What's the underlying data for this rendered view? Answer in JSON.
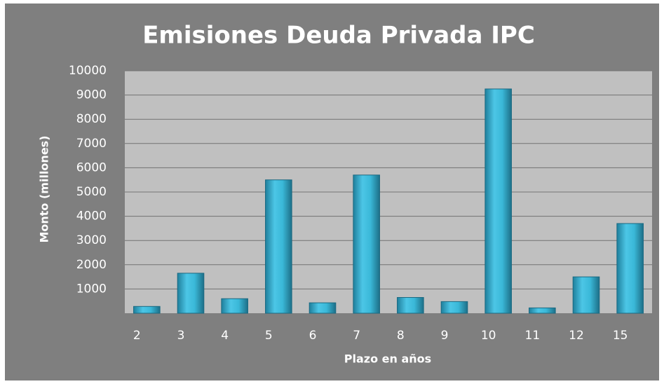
{
  "chart_data": {
    "type": "bar",
    "title": "Emisiones Deuda Privada IPC",
    "x_label": "Plazo en años",
    "y_label": "Monto (millones)",
    "categories": [
      "2",
      "3",
      "4",
      "5",
      "6",
      "7",
      "8",
      "9",
      "10",
      "11",
      "12",
      "15"
    ],
    "values": [
      280,
      1650,
      600,
      5500,
      430,
      5700,
      650,
      480,
      9250,
      220,
      1500,
      3700
    ],
    "color": "#3ab8d8",
    "ylim": [
      0,
      10000
    ],
    "yticks": [
      1000,
      2000,
      3000,
      4000,
      5000,
      6000,
      7000,
      8000,
      9000,
      10000
    ],
    "grid": true
  }
}
